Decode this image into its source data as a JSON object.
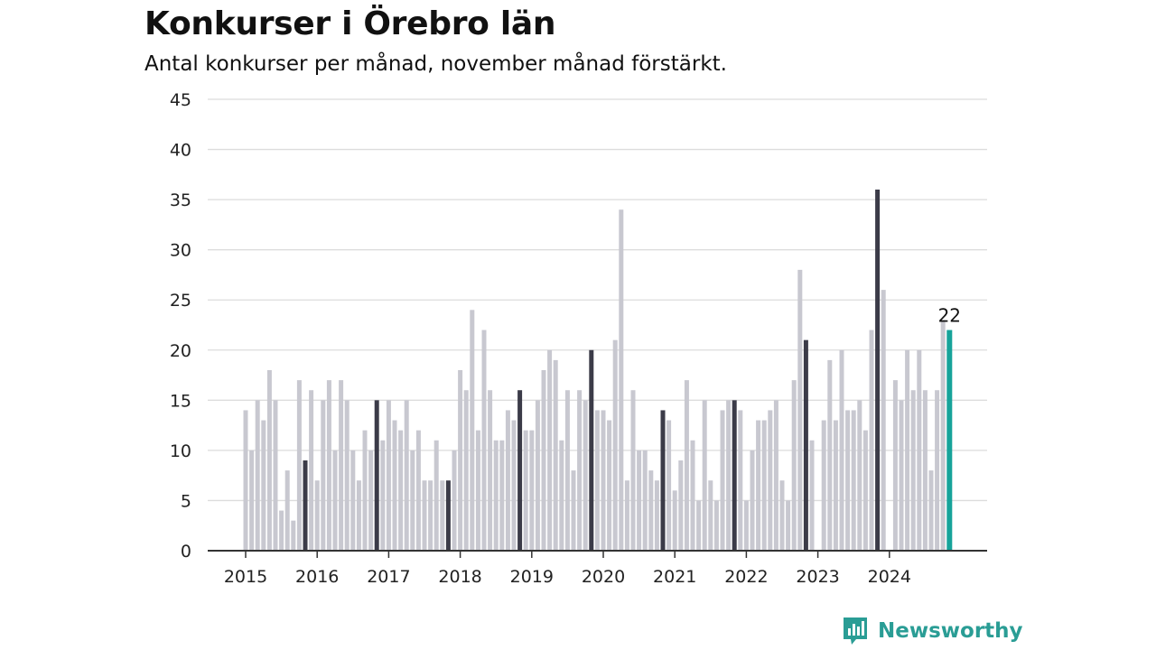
{
  "chart_data": {
    "type": "bar",
    "title": "Konkurser i Örebro län",
    "subtitle": "Antal konkurser per månad, november månad förstärkt.",
    "ylim": [
      0,
      45
    ],
    "yticks": [
      "0",
      "5",
      "10",
      "15",
      "20",
      "25",
      "30",
      "35",
      "40",
      "45"
    ],
    "xtick_labels": [
      "2015",
      "2016",
      "2017",
      "2018",
      "2019",
      "2020",
      "2021",
      "2022",
      "2023",
      "2024"
    ],
    "grid": true,
    "highlight_rule": "november",
    "last_label": "22",
    "colors": {
      "regular": "#c8c8d0",
      "november": "#3b3b48",
      "latest": "#16a39a",
      "grid": "#dcdcdc",
      "axis": "#333333"
    },
    "months": [
      {
        "year": 2015,
        "values": [
          14,
          10,
          15,
          13,
          18,
          15,
          4,
          8,
          3,
          17,
          9,
          16
        ]
      },
      {
        "year": 2016,
        "values": [
          7,
          15,
          17,
          10,
          17,
          15,
          10,
          7,
          12,
          10,
          15,
          11
        ]
      },
      {
        "year": 2017,
        "values": [
          15,
          13,
          12,
          15,
          10,
          12,
          7,
          7,
          11,
          7,
          7,
          10
        ]
      },
      {
        "year": 2018,
        "values": [
          18,
          16,
          24,
          12,
          22,
          16,
          11,
          11,
          14,
          13,
          16,
          12
        ]
      },
      {
        "year": 2019,
        "values": [
          12,
          15,
          18,
          20,
          19,
          11,
          16,
          8,
          16,
          15,
          20,
          14
        ]
      },
      {
        "year": 2020,
        "values": [
          14,
          13,
          21,
          34,
          7,
          16,
          10,
          10,
          8,
          7,
          14,
          13
        ]
      },
      {
        "year": 2021,
        "values": [
          6,
          9,
          17,
          11,
          5,
          15,
          7,
          5,
          14,
          15,
          15,
          14
        ]
      },
      {
        "year": 2022,
        "values": [
          5,
          10,
          13,
          13,
          14,
          15,
          7,
          5,
          17,
          28,
          21,
          11
        ]
      },
      {
        "year": 2023,
        "values": [
          0,
          13,
          19,
          13,
          20,
          14,
          14,
          15,
          12,
          22,
          36,
          26
        ]
      },
      {
        "year": 2024,
        "values": [
          0,
          17,
          15,
          20,
          16,
          20,
          16,
          8,
          16,
          23,
          22
        ]
      }
    ]
  },
  "brand": {
    "name": "Newsworthy",
    "logo_icon": "bar-chart-speech-bubble-icon"
  }
}
